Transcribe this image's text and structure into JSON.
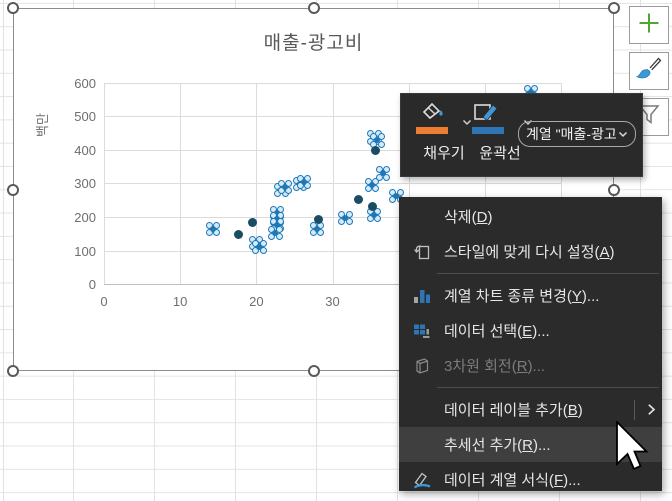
{
  "chart": {
    "title": "매출-광고비",
    "y_unit_label": "백만",
    "chart_data": {
      "type": "scatter",
      "title": "매출-광고비",
      "xlabel": "",
      "ylabel": "백만",
      "xlim": [
        0,
        60
      ],
      "ylim": [
        0,
        600
      ],
      "x_ticks_visible": [
        0,
        10,
        20,
        30
      ],
      "x_gridlines": [
        0,
        10,
        20,
        30,
        40,
        50,
        60
      ],
      "y_ticks": [
        0,
        100,
        200,
        300,
        400,
        500,
        600
      ],
      "grid": true,
      "legend": false,
      "series": [
        {
          "name": "매출-광고비",
          "marker": "selected-flower",
          "points": [
            [
              14.3,
              164
            ],
            [
              19.9,
              124
            ],
            [
              20.4,
              111
            ],
            [
              22.7,
              212
            ],
            [
              22.7,
              194
            ],
            [
              22.7,
              176
            ],
            [
              22.5,
              152
            ],
            [
              23.3,
              280
            ],
            [
              23.8,
              290
            ],
            [
              25.7,
              298
            ],
            [
              26.2,
              304
            ],
            [
              28.0,
              165
            ],
            [
              31.7,
              197
            ],
            [
              35.4,
              206
            ],
            [
              35.2,
              295
            ],
            [
              36.6,
              330
            ],
            [
              35.5,
              437
            ],
            [
              35.9,
              428
            ],
            [
              38.4,
              264
            ],
            [
              56.0,
              572
            ]
          ]
        },
        {
          "name": "",
          "marker": "solid-dot",
          "points": [
            [
              17.7,
              147
            ],
            [
              19.5,
              183
            ],
            [
              28.1,
              192
            ],
            [
              33.4,
              251
            ],
            [
              35.3,
              231
            ],
            [
              35.7,
              399
            ]
          ]
        }
      ]
    }
  },
  "mini_toolbar": {
    "fill_label": "채우기",
    "outline_label": "윤곽선",
    "series_selector_value": "계열 \"매출-광고",
    "fill_accent": "#ED7D31",
    "outline_accent": "#2E75B6"
  },
  "context_menu": {
    "items": [
      {
        "type": "item",
        "name": "delete",
        "label": "삭제",
        "key": "D"
      },
      {
        "type": "item",
        "name": "reset-to-match-style",
        "label": "스타일에 맞게 다시 설정",
        "key": "A",
        "icon": "reset-style-icon"
      },
      {
        "type": "separator"
      },
      {
        "type": "item",
        "name": "change-series-chart-type",
        "label": "계열 차트 종류 변경",
        "key": "Y",
        "trailing": "...",
        "icon": "chart-type-icon"
      },
      {
        "type": "item",
        "name": "select-data",
        "label": "데이터 선택",
        "key": "E",
        "trailing": "...",
        "icon": "select-data-icon"
      },
      {
        "type": "item",
        "name": "3d-rotation",
        "label": "3차원 회전",
        "key": "R",
        "trailing": "...",
        "icon": "cube-3d-icon",
        "disabled": true
      },
      {
        "type": "separator"
      },
      {
        "type": "item",
        "name": "add-data-labels",
        "label": "데이터 레이블 추가",
        "key": "B",
        "submenu": true
      },
      {
        "type": "item",
        "name": "add-trendline",
        "label": "추세선 추가",
        "key": "R",
        "trailing": "...",
        "highlighted": true
      },
      {
        "type": "item",
        "name": "format-data-series",
        "label": "데이터 계열 서식",
        "key": "F",
        "trailing": "...",
        "icon": "format-series-icon"
      }
    ]
  },
  "chart_buttons": [
    {
      "name": "chart-elements-button",
      "icon": "plus-icon"
    },
    {
      "name": "chart-styles-button",
      "icon": "brush-icon"
    },
    {
      "name": "chart-filters-button",
      "icon": "funnel-icon"
    }
  ],
  "colors": {
    "marker_blue": "#1B79B8",
    "marker_dark": "#1A4D63",
    "menu_bg": "#2B2B2B",
    "menu_highlight": "#3F3F3F",
    "title_gray": "#595959"
  }
}
